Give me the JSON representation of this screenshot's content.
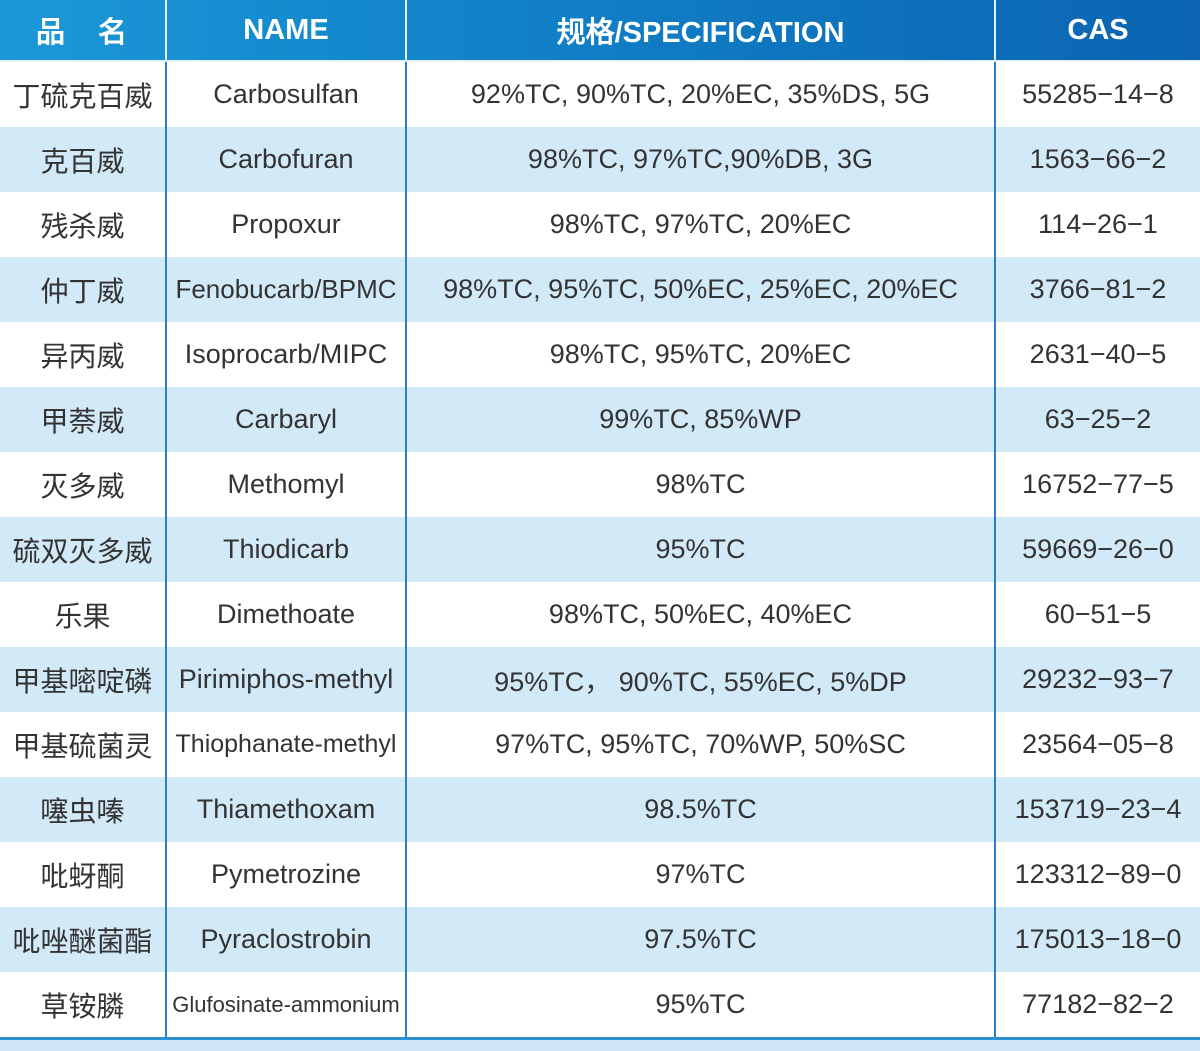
{
  "table": {
    "headers": {
      "cn": "品　名",
      "name": "NAME",
      "spec": "规格/SPECIFICATION",
      "cas": "CAS"
    },
    "rows": [
      {
        "cn": "丁硫克百威",
        "name": "Carbosulfan",
        "spec": "92%TC, 90%TC, 20%EC, 35%DS, 5G",
        "cas": "55285−14−8"
      },
      {
        "cn": "克百威",
        "name": "Carbofuran",
        "spec": "98%TC, 97%TC,90%DB, 3G",
        "cas": "1563−66−2"
      },
      {
        "cn": "残杀威",
        "name": "Propoxur",
        "spec": "98%TC, 97%TC, 20%EC",
        "cas": "114−26−1"
      },
      {
        "cn": "仲丁威",
        "name": "Fenobucarb/BPMC",
        "spec": "98%TC, 95%TC, 50%EC, 25%EC, 20%EC",
        "cas": "3766−81−2"
      },
      {
        "cn": "异丙威",
        "name": "Isoprocarb/MIPC",
        "spec": "98%TC, 95%TC, 20%EC",
        "cas": "2631−40−5"
      },
      {
        "cn": "甲萘威",
        "name": "Carbaryl",
        "spec": "99%TC, 85%WP",
        "cas": "63−25−2"
      },
      {
        "cn": "灭多威",
        "name": "Methomyl",
        "spec": "98%TC",
        "cas": "16752−77−5"
      },
      {
        "cn": "硫双灭多威",
        "name": "Thiodicarb",
        "spec": "95%TC",
        "cas": "59669−26−0"
      },
      {
        "cn": "乐果",
        "name": "Dimethoate",
        "spec": "98%TC, 50%EC, 40%EC",
        "cas": "60−51−5"
      },
      {
        "cn": "甲基嘧啶磷",
        "name": "Pirimiphos-methyl",
        "spec": "95%TC， 90%TC, 55%EC, 5%DP",
        "cas": "29232−93−7"
      },
      {
        "cn": "甲基硫菌灵",
        "name": "Thiophanate-methyl",
        "spec": "97%TC, 95%TC, 70%WP, 50%SC",
        "cas": "23564−05−8"
      },
      {
        "cn": "噻虫嗪",
        "name": "Thiamethoxam",
        "spec": "98.5%TC",
        "cas": "153719−23−4"
      },
      {
        "cn": "吡蚜酮",
        "name": "Pymetrozine",
        "spec": "97%TC",
        "cas": "123312−89−0"
      },
      {
        "cn": "吡唑醚菌酯",
        "name": "Pyraclostrobin",
        "spec": "97.5%TC",
        "cas": "175013−18−0"
      },
      {
        "cn": "草铵膦",
        "name": "Glufosinate-ammonium",
        "spec": "95%TC",
        "cas": "77182−82−2"
      }
    ]
  },
  "colors": {
    "header_gradient_left": "#1b98d8",
    "header_gradient_right": "#0a64b2",
    "header_text": "#ffffff",
    "row_alt_blue": "#d2e9f7",
    "row_white": "#ffffff",
    "column_divider_blue": "#2e7cc4",
    "bottom_line_blue": "#2a90d0",
    "bottom_strip_blue": "#cfe7f6",
    "body_text": "#333333"
  }
}
